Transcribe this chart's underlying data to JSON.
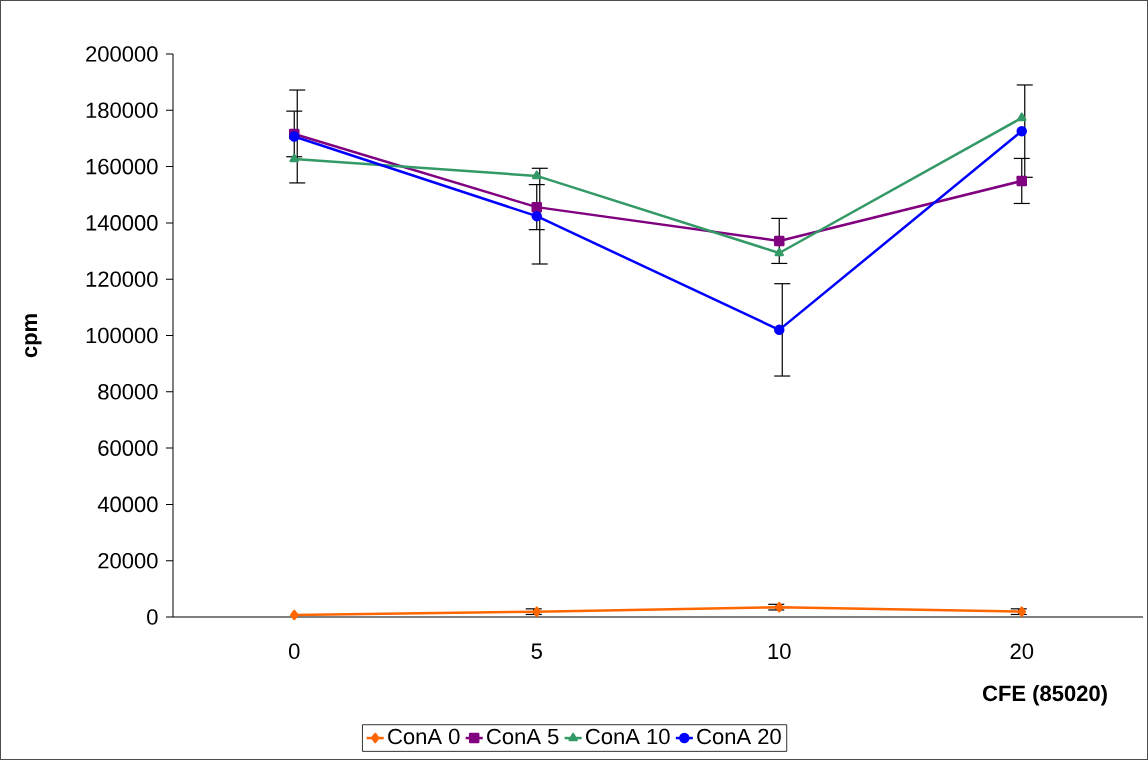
{
  "chart_data": {
    "type": "line",
    "xlabel": "CFE (85020)",
    "ylabel": "cpm",
    "categories": [
      "0",
      "5",
      "10",
      "20"
    ],
    "series": [
      {
        "name": "ConA 0",
        "color": "#ff6600",
        "marker": "diamond",
        "values": [
          700,
          1900,
          3500,
          1900
        ],
        "errors": [
          null,
          1000,
          1000,
          1000
        ]
      },
      {
        "name": "ConA 5",
        "color": "#800080",
        "marker": "square",
        "values": [
          171600,
          145600,
          133600,
          154900
        ],
        "errors": [
          8100,
          8000,
          8000,
          8000
        ]
      },
      {
        "name": "ConA 10",
        "color": "#339966",
        "marker": "triangle",
        "values": [
          162700,
          156700,
          129300,
          177300
        ]
      },
      {
        "name": "ConA 20",
        "color": "#0000ff",
        "marker": "circle",
        "values": [
          170700,
          142400,
          102000,
          172600
        ],
        "errors": [
          16500,
          17000,
          16400,
          16400
        ]
      }
    ],
    "ylim": [
      0,
      200000
    ],
    "yticks": [
      0,
      20000,
      40000,
      60000,
      80000,
      100000,
      120000,
      140000,
      160000,
      180000,
      200000
    ],
    "grid": false,
    "legend": "bottom",
    "line_style": "solid"
  }
}
